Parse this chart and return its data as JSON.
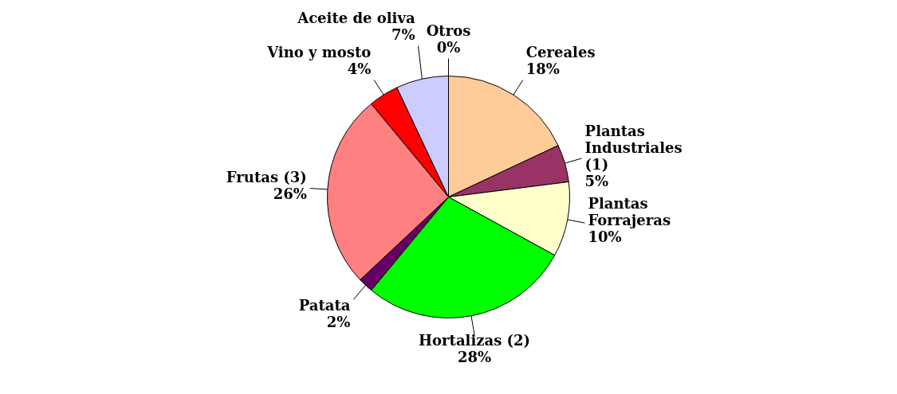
{
  "chart_data": {
    "type": "pie",
    "categories": [
      "Cereales",
      "Plantas Industriales (1)",
      "Plantas Forrajeras",
      "Hortalizas (2)",
      "Patata",
      "Frutas (3)",
      "Vino y mosto",
      "Aceite de oliva",
      "Otros"
    ],
    "values": [
      18,
      5,
      10,
      28,
      2,
      26,
      4,
      7,
      0
    ],
    "colors": [
      "#ffcc99",
      "#993366",
      "#ffffcc",
      "#00ff00",
      "#660066",
      "#ff8080",
      "#ff0000",
      "#ccccff",
      "#000080"
    ],
    "value_labels": [
      "18%",
      "5%",
      "10%",
      "28%",
      "2%",
      "26%",
      "4%",
      "7%",
      "0%"
    ],
    "legend": false
  }
}
